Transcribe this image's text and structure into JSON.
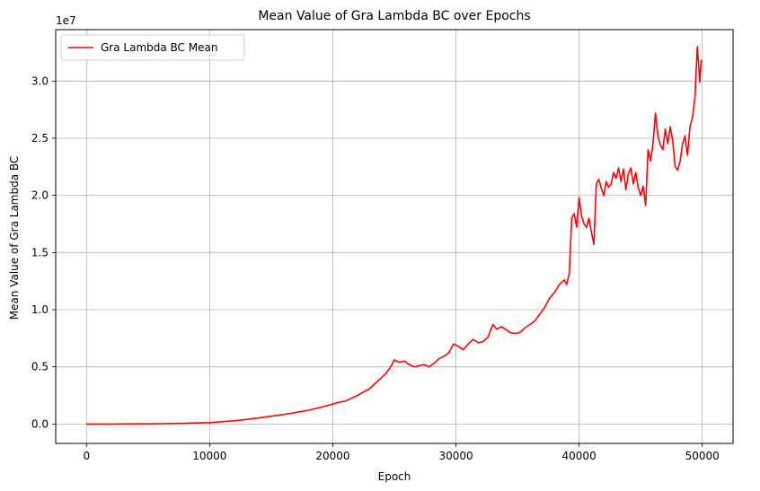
{
  "chart_data": {
    "type": "line",
    "title": "Mean Value of Gra Lambda BC over Epochs",
    "xlabel": "Epoch",
    "ylabel": "Mean Value of Gra Lambda BC",
    "y_offset_label": "1e7",
    "xlim": [
      -2500,
      52500
    ],
    "ylim": [
      -0.17,
      3.45
    ],
    "x_ticks": [
      0,
      10000,
      20000,
      30000,
      40000,
      50000
    ],
    "x_tick_labels": [
      "0",
      "10000",
      "20000",
      "30000",
      "40000",
      "50000"
    ],
    "y_ticks": [
      0.0,
      0.5,
      1.0,
      1.5,
      2.0,
      2.5,
      3.0
    ],
    "y_tick_labels": [
      "0.0",
      "0.5",
      "1.0",
      "1.5",
      "2.0",
      "2.5",
      "3.0"
    ],
    "grid": true,
    "legend_position": "top-left",
    "series": [
      {
        "name": "Gra Lambda BC Mean",
        "color": "#ff0000",
        "x": [
          0,
          2000,
          4000,
          6000,
          8000,
          10000,
          11000,
          12000,
          13000,
          14000,
          15000,
          16000,
          17000,
          18000,
          19000,
          19500,
          20000,
          20500,
          21000,
          21500,
          22000,
          22500,
          23000,
          23500,
          24000,
          24300,
          24700,
          25000,
          25400,
          25800,
          26200,
          26600,
          27000,
          27400,
          27800,
          28200,
          28600,
          29000,
          29400,
          29800,
          30200,
          30600,
          31000,
          31400,
          31800,
          32200,
          32600,
          33000,
          33300,
          33700,
          34000,
          34400,
          34800,
          35200,
          35600,
          36000,
          36400,
          36800,
          37200,
          37600,
          38000,
          38400,
          38800,
          39000,
          39200,
          39400,
          39600,
          39800,
          40000,
          40200,
          40400,
          40600,
          40800,
          41000,
          41200,
          41400,
          41600,
          41800,
          42000,
          42200,
          42400,
          42600,
          42800,
          43000,
          43200,
          43400,
          43600,
          43800,
          44000,
          44200,
          44400,
          44600,
          44800,
          45000,
          45200,
          45400,
          45600,
          45800,
          46000,
          46200,
          46400,
          46600,
          46800,
          47000,
          47200,
          47400,
          47600,
          47800,
          48000,
          48200,
          48400,
          48600,
          48800,
          49000,
          49200,
          49400,
          49600,
          49700,
          49800,
          49900,
          50000
        ],
        "y": [
          0.0,
          0.0,
          0.001,
          0.003,
          0.006,
          0.012,
          0.02,
          0.028,
          0.04,
          0.053,
          0.068,
          0.083,
          0.1,
          0.12,
          0.145,
          0.16,
          0.175,
          0.19,
          0.2,
          0.225,
          0.25,
          0.28,
          0.31,
          0.36,
          0.41,
          0.44,
          0.5,
          0.56,
          0.54,
          0.55,
          0.52,
          0.5,
          0.51,
          0.52,
          0.5,
          0.53,
          0.57,
          0.59,
          0.62,
          0.7,
          0.68,
          0.65,
          0.7,
          0.74,
          0.71,
          0.72,
          0.76,
          0.87,
          0.83,
          0.85,
          0.83,
          0.8,
          0.79,
          0.8,
          0.84,
          0.87,
          0.9,
          0.96,
          1.02,
          1.1,
          1.15,
          1.22,
          1.26,
          1.22,
          1.32,
          1.8,
          1.84,
          1.72,
          1.98,
          1.82,
          1.75,
          1.72,
          1.8,
          1.68,
          1.57,
          2.1,
          2.14,
          2.06,
          2.0,
          2.12,
          2.07,
          2.1,
          2.2,
          2.15,
          2.24,
          2.12,
          2.23,
          2.05,
          2.19,
          2.24,
          2.1,
          2.2,
          2.07,
          2.0,
          2.08,
          1.91,
          2.4,
          2.3,
          2.45,
          2.72,
          2.52,
          2.44,
          2.4,
          2.58,
          2.45,
          2.6,
          2.48,
          2.25,
          2.22,
          2.3,
          2.45,
          2.52,
          2.35,
          2.6,
          2.68,
          2.85,
          3.3,
          3.15,
          2.99,
          3.18,
          3.17
        ]
      }
    ]
  }
}
